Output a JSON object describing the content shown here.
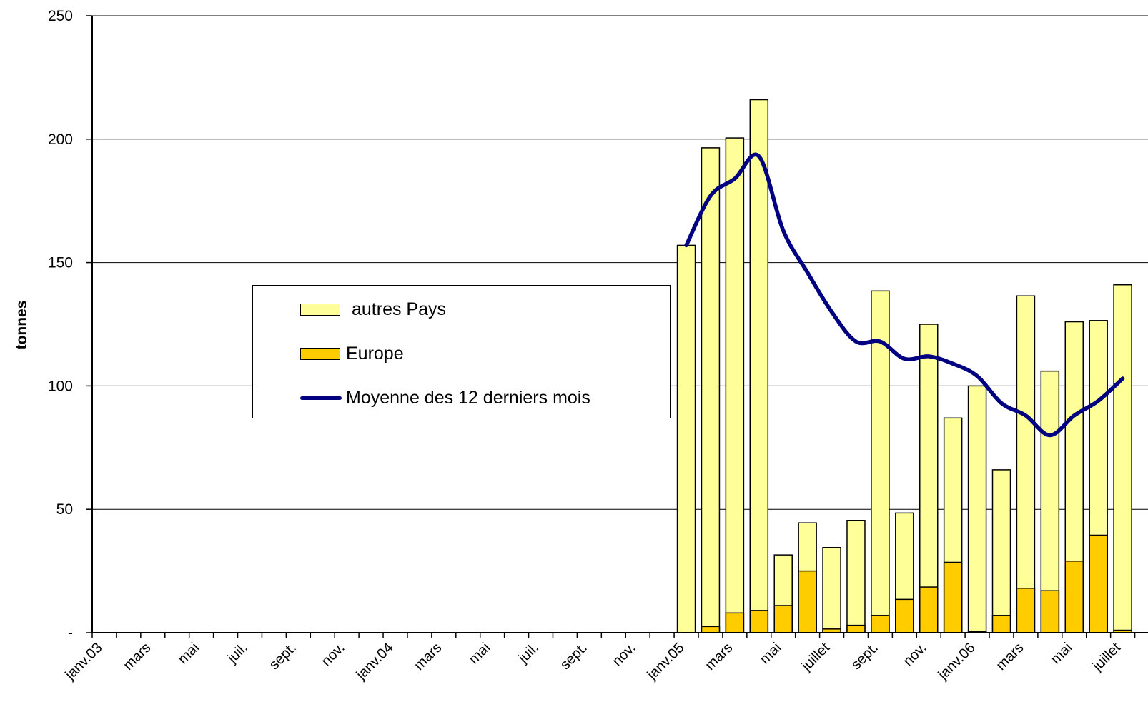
{
  "chart_data": {
    "type": "bar",
    "stacked": true,
    "ylabel": "tonnes",
    "ylim": [
      0,
      250
    ],
    "yticks": [
      {
        "value": 0,
        "label": "-"
      },
      {
        "value": 50,
        "label": "50"
      },
      {
        "value": 100,
        "label": "100"
      },
      {
        "value": 150,
        "label": "150"
      },
      {
        "value": 200,
        "label": "200"
      },
      {
        "value": 250,
        "label": "250"
      }
    ],
    "grid": true,
    "legend_position": "center-left",
    "colors": {
      "autres": "#FFFF99",
      "europe": "#FFCC00",
      "line": "#000080",
      "bar_edge": "#000000"
    },
    "x_labels": [
      {
        "index": 0,
        "label": "janv.03"
      },
      {
        "index": 2,
        "label": "mars"
      },
      {
        "index": 4,
        "label": "mai"
      },
      {
        "index": 6,
        "label": "juil."
      },
      {
        "index": 8,
        "label": "sept."
      },
      {
        "index": 10,
        "label": "nov."
      },
      {
        "index": 12,
        "label": "janv.04"
      },
      {
        "index": 14,
        "label": "mars"
      },
      {
        "index": 16,
        "label": "mai"
      },
      {
        "index": 18,
        "label": "juil."
      },
      {
        "index": 20,
        "label": "sept."
      },
      {
        "index": 22,
        "label": "nov."
      },
      {
        "index": 24,
        "label": "janv.05"
      },
      {
        "index": 26,
        "label": "mars"
      },
      {
        "index": 28,
        "label": "mai"
      },
      {
        "index": 30,
        "label": "juillet"
      },
      {
        "index": 32,
        "label": "sept."
      },
      {
        "index": 34,
        "label": "nov."
      },
      {
        "index": 36,
        "label": "janv.06"
      },
      {
        "index": 38,
        "label": "mars"
      },
      {
        "index": 40,
        "label": "mai"
      },
      {
        "index": 42,
        "label": "juillet"
      }
    ],
    "series": [
      {
        "name": "Europe",
        "kind": "bar",
        "values": [
          0,
          0,
          0,
          0,
          0,
          0,
          0,
          0,
          0,
          0,
          0,
          0,
          0,
          0,
          0,
          0,
          0,
          0,
          0,
          0,
          0,
          0,
          0,
          0,
          0,
          2.5,
          8,
          9,
          11,
          25,
          1.5,
          3,
          7,
          13.5,
          18.5,
          28.5,
          0.5,
          7,
          18,
          17,
          29,
          39.5,
          1
        ]
      },
      {
        "name": "autres Pays",
        "kind": "bar",
        "values": [
          0,
          0,
          0,
          0,
          0,
          0,
          0,
          0,
          0,
          0,
          0,
          0,
          0,
          0,
          0,
          0,
          0,
          0,
          0,
          0,
          0,
          0,
          0,
          0,
          157,
          194,
          192.5,
          207,
          20.5,
          19.5,
          33,
          42.5,
          131.5,
          35,
          106.5,
          58.5,
          99.5,
          59,
          118.5,
          89,
          97,
          87,
          140
        ]
      },
      {
        "name": "Moyenne des 12 derniers mois",
        "kind": "line",
        "values": [
          null,
          null,
          null,
          null,
          null,
          null,
          null,
          null,
          null,
          null,
          null,
          null,
          null,
          null,
          null,
          null,
          null,
          null,
          null,
          null,
          null,
          null,
          null,
          null,
          157,
          177,
          184,
          193,
          163,
          146,
          130,
          118,
          118,
          111,
          112,
          109,
          104,
          93,
          88,
          80,
          88,
          94,
          103
        ]
      }
    ]
  },
  "legend": {
    "items": [
      {
        "label": "autres Pays"
      },
      {
        "label": "Europe"
      },
      {
        "label": "Moyenne des 12 derniers mois"
      }
    ]
  }
}
